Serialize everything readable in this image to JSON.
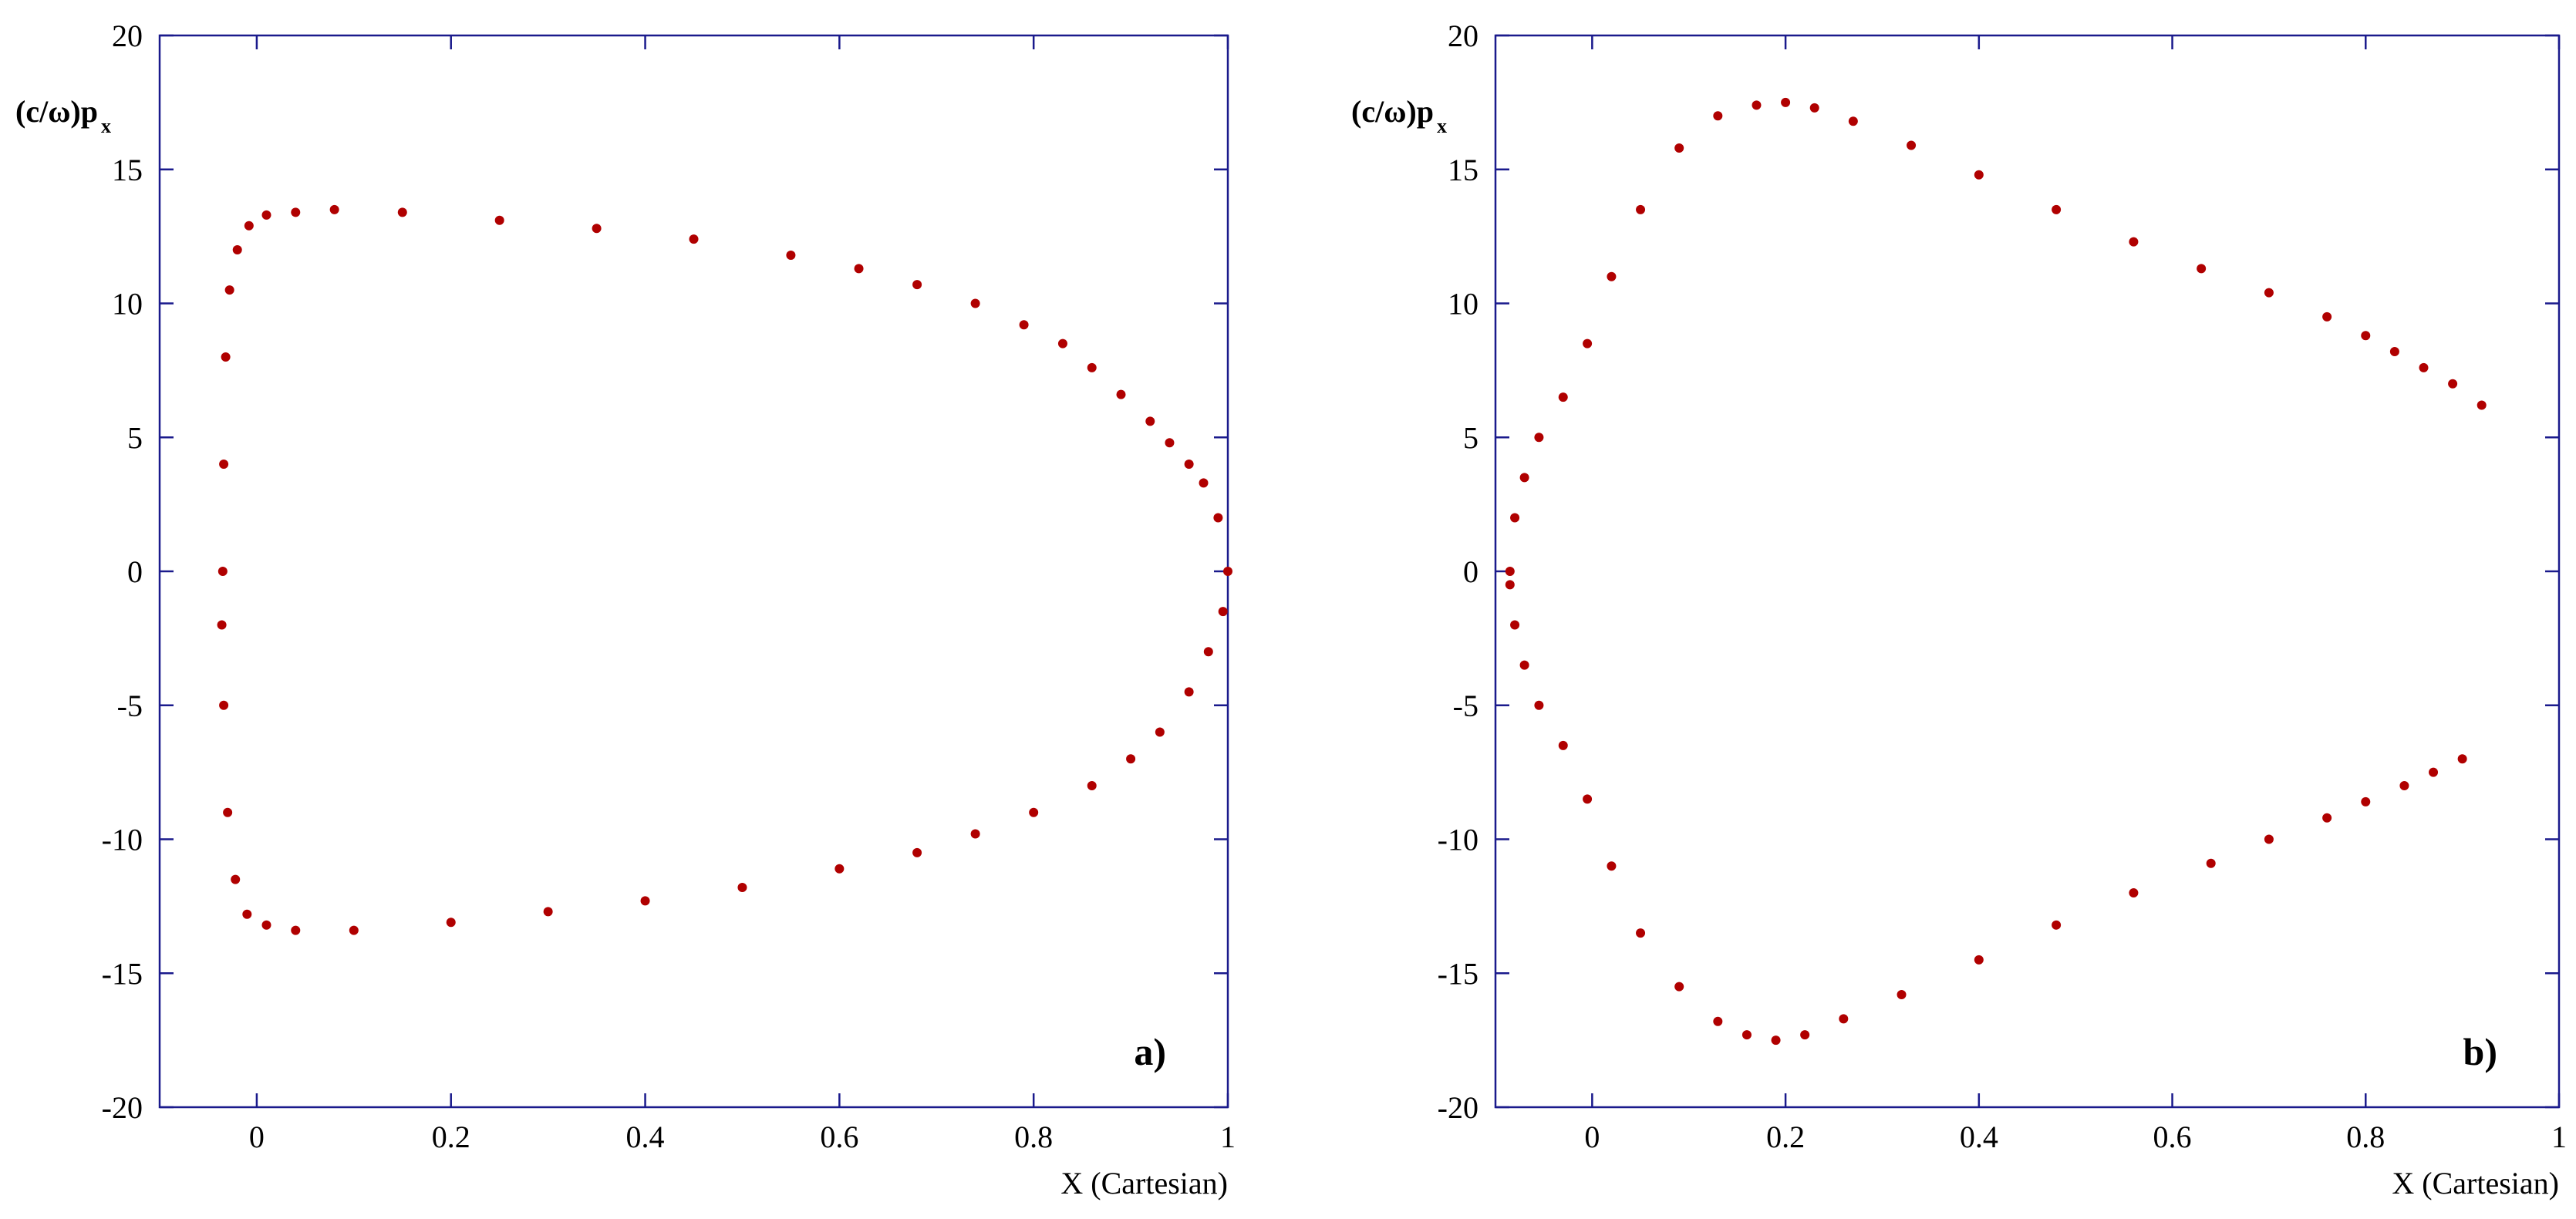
{
  "chart_data": [
    {
      "type": "scatter",
      "panel_label": "a)",
      "ylabel_main": "(c/ω)p",
      "ylabel_sub": "x",
      "xlabel": "X (Cartesian)",
      "xlim": [
        -0.1,
        1.0
      ],
      "ylim": [
        -20,
        20
      ],
      "xticks": [
        "0",
        "0.2",
        "0.4",
        "0.6",
        "0.8",
        "1"
      ],
      "xtick_values": [
        0,
        0.2,
        0.4,
        0.6,
        0.8,
        1.0
      ],
      "yticks": [
        "-20",
        "-15",
        "-10",
        "-5",
        "0",
        "5",
        "10",
        "15",
        "20"
      ],
      "ytick_values": [
        -20,
        -15,
        -10,
        -5,
        0,
        5,
        10,
        15,
        20
      ],
      "grid": false,
      "marker_color": "#b00000",
      "series": [
        {
          "x": [
            -0.035,
            -0.034,
            -0.032,
            -0.028,
            -0.02,
            -0.008,
            0.01,
            0.04,
            0.08,
            0.15,
            0.25,
            0.35,
            0.45,
            0.55,
            0.62,
            0.68,
            0.74,
            0.79,
            0.83,
            0.86,
            0.89,
            0.92,
            0.94,
            0.96,
            0.975,
            0.99,
            1.0,
            0.995,
            0.98,
            0.96,
            0.93,
            0.9,
            0.86,
            0.8,
            0.74,
            0.68,
            0.6,
            0.5,
            0.4,
            0.3,
            0.2,
            0.1,
            0.04,
            0.01,
            -0.01,
            -0.022,
            -0.03,
            -0.034,
            -0.036
          ],
          "y": [
            0.0,
            4.0,
            8.0,
            10.5,
            12.0,
            12.9,
            13.3,
            13.4,
            13.5,
            13.4,
            13.1,
            12.8,
            12.4,
            11.8,
            11.3,
            10.7,
            10.0,
            9.2,
            8.5,
            7.6,
            6.6,
            5.6,
            4.8,
            4.0,
            3.3,
            2.0,
            0.0,
            -1.5,
            -3.0,
            -4.5,
            -6.0,
            -7.0,
            -8.0,
            -9.0,
            -9.8,
            -10.5,
            -11.1,
            -11.8,
            -12.3,
            -12.7,
            -13.1,
            -13.4,
            -13.4,
            -13.2,
            -12.8,
            -11.5,
            -9.0,
            -5.0,
            -2.0
          ]
        }
      ]
    },
    {
      "type": "scatter",
      "panel_label": "b)",
      "ylabel_main": "(c/ω)p",
      "ylabel_sub": "x",
      "xlabel": "X (Cartesian)",
      "xlim": [
        -0.1,
        1.0
      ],
      "ylim": [
        -20,
        20
      ],
      "xticks": [
        "0",
        "0.2",
        "0.4",
        "0.6",
        "0.8",
        "1"
      ],
      "xtick_values": [
        0,
        0.2,
        0.4,
        0.6,
        0.8,
        1.0
      ],
      "yticks": [
        "-20",
        "-15",
        "-10",
        "-5",
        "0",
        "5",
        "10",
        "15",
        "20"
      ],
      "ytick_values": [
        -20,
        -15,
        -10,
        -5,
        0,
        5,
        10,
        15,
        20
      ],
      "grid": false,
      "marker_color": "#b00000",
      "series": [
        {
          "x": [
            -0.085,
            -0.08,
            -0.07,
            -0.055,
            -0.03,
            -0.005,
            0.02,
            0.05,
            0.09,
            0.13,
            0.17,
            0.2,
            0.23,
            0.27,
            0.33,
            0.4,
            0.48,
            0.56,
            0.63,
            0.7,
            0.76,
            0.8,
            0.83,
            0.86,
            0.89,
            0.92
          ],
          "y": [
            0.0,
            2.0,
            3.5,
            5.0,
            6.5,
            8.5,
            11.0,
            13.5,
            15.8,
            17.0,
            17.4,
            17.5,
            17.3,
            16.8,
            15.9,
            14.8,
            13.5,
            12.3,
            11.3,
            10.4,
            9.5,
            8.8,
            8.2,
            7.6,
            7.0,
            6.2
          ]
        },
        {
          "x": [
            -0.085,
            -0.08,
            -0.07,
            -0.055,
            -0.03,
            -0.005,
            0.02,
            0.05,
            0.09,
            0.13,
            0.16,
            0.19,
            0.22,
            0.26,
            0.32,
            0.4,
            0.48,
            0.56,
            0.64,
            0.7,
            0.76,
            0.8,
            0.84,
            0.87,
            0.9
          ],
          "y": [
            -0.5,
            -2.0,
            -3.5,
            -5.0,
            -6.5,
            -8.5,
            -11.0,
            -13.5,
            -15.5,
            -16.8,
            -17.3,
            -17.5,
            -17.3,
            -16.7,
            -15.8,
            -14.5,
            -13.2,
            -12.0,
            -10.9,
            -10.0,
            -9.2,
            -8.6,
            -8.0,
            -7.5,
            -7.0
          ]
        }
      ]
    }
  ]
}
